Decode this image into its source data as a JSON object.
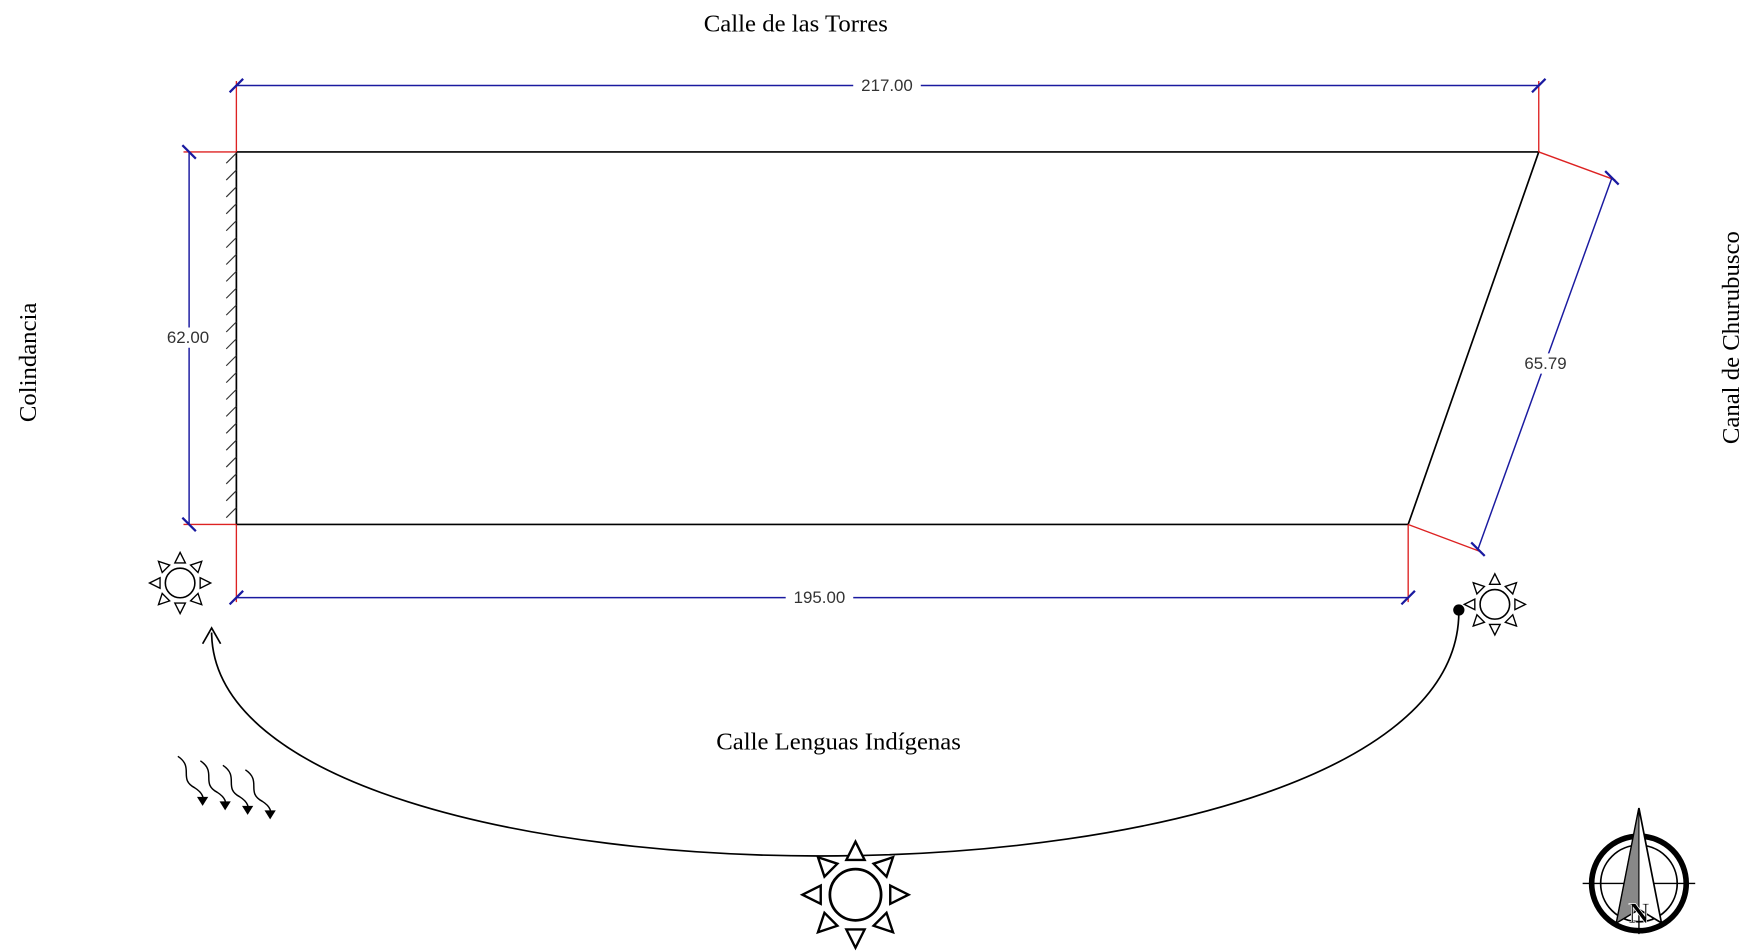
{
  "streets": {
    "north": "Calle de las Torres",
    "south": "Calle Lenguas Indígenas",
    "west": "Colindancia",
    "east": "Canal de Churubusco"
  },
  "dimensions": {
    "top": "217.00",
    "left": "62.00",
    "right": "65.79",
    "bottom": "195.00"
  },
  "compass": {
    "label": "N"
  }
}
